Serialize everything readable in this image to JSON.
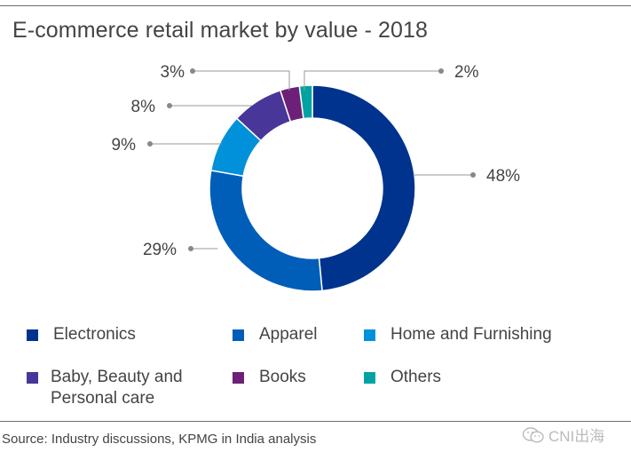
{
  "chart_data": {
    "type": "pie",
    "variant": "donut",
    "title": "E-commerce retail market by value - 2018",
    "categories": [
      "Electronics",
      "Apparel",
      "Home and Furnishing",
      "Baby, Beauty and Personal care",
      "Books",
      "Others"
    ],
    "values": [
      48,
      29,
      9,
      8,
      3,
      2
    ],
    "labels": [
      "48%",
      "29%",
      "9%",
      "8%",
      "3%",
      "2%"
    ],
    "colors": [
      "#00338d",
      "#005eb8",
      "#0091da",
      "#483698",
      "#6d2077",
      "#00a3a1"
    ],
    "legend_position": "bottom"
  },
  "legend": [
    {
      "label": "Electronics",
      "color": "#00338d"
    },
    {
      "label": "Apparel",
      "color": "#005eb8"
    },
    {
      "label": "Home and Furnishing",
      "color": "#0091da"
    },
    {
      "label_line1": "Baby, Beauty and",
      "label_line2": "Personal care",
      "color": "#483698"
    },
    {
      "label": "Books",
      "color": "#6d2077"
    },
    {
      "label": "Others",
      "color": "#00a3a1"
    }
  ],
  "source": "Source: Industry discussions, KPMG in India analysis",
  "watermark": "CNI出海"
}
